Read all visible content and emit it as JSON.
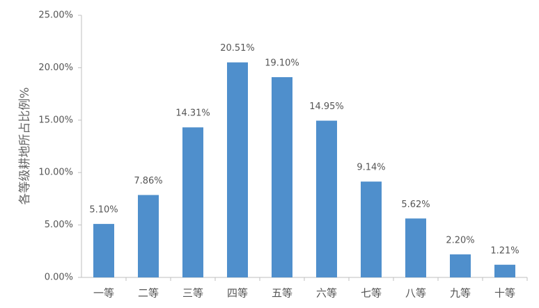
{
  "chart_data": {
    "type": "bar",
    "y_axis_label": "各等级耕地所占比例%",
    "categories": [
      "一等",
      "二等",
      "三等",
      "四等",
      "五等",
      "六等",
      "七等",
      "八等",
      "九等",
      "十等"
    ],
    "values": [
      5.1,
      7.86,
      14.31,
      20.51,
      19.1,
      14.95,
      9.14,
      5.62,
      2.2,
      1.21
    ],
    "value_labels": [
      "5.10%",
      "7.86%",
      "14.31%",
      "20.51%",
      "19.10%",
      "14.95%",
      "9.14%",
      "5.62%",
      "2.20%",
      "1.21%"
    ],
    "color": "#4f8fcc",
    "ylim": [
      0,
      25
    ],
    "yticks": [
      {
        "value": 0,
        "label": "0.00%"
      },
      {
        "value": 5,
        "label": "5.00%"
      },
      {
        "value": 10,
        "label": "10.00%"
      },
      {
        "value": 15,
        "label": "15.00%"
      },
      {
        "value": 20,
        "label": "20.00%"
      },
      {
        "value": 25,
        "label": "25.00%"
      }
    ],
    "grid": false
  }
}
